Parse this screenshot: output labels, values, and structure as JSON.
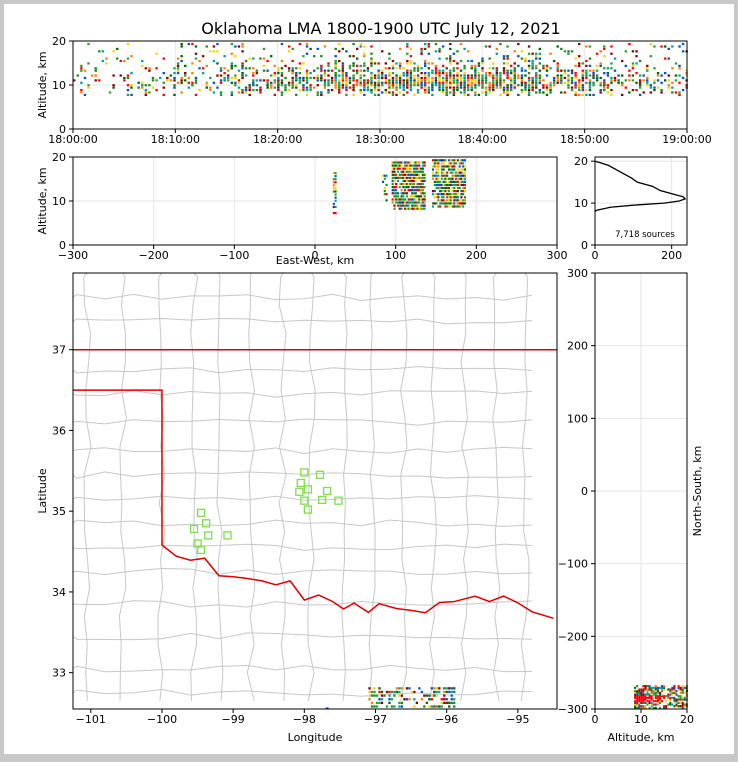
{
  "title": "Oklahoma LMA 1800-1900 UTC July 12, 2021",
  "palette": [
    "#006400",
    "#1a8a1a",
    "#2ca02c",
    "#00a0a0",
    "#0050d0",
    "#ff8000",
    "#ff0000",
    "#8b0000",
    "#ffd000"
  ],
  "colors": {
    "border": "#e00000",
    "station": "#7de04a",
    "county": "#c8c8c8",
    "histogram": "#000000"
  },
  "chart_data": [
    {
      "type": "heatmap",
      "name": "time-altitude",
      "xlabel": "",
      "ylabel": "Altitude, km",
      "x_ticks": [
        "18:00:00",
        "18:10:00",
        "18:20:00",
        "18:30:00",
        "18:40:00",
        "18:50:00",
        "19:00:00"
      ],
      "xlim_minutes": [
        0,
        60
      ],
      "ylim": [
        0,
        20
      ],
      "y_ticks": [
        0,
        10,
        20
      ]
    },
    {
      "type": "heatmap",
      "name": "east-west-altitude",
      "xlabel": "East-West, km",
      "ylabel": "Altitude, km",
      "xlim": [
        -300,
        300
      ],
      "x_ticks": [
        -300,
        -200,
        -100,
        0,
        100,
        200,
        300
      ],
      "ylim": [
        0,
        20
      ],
      "y_ticks": [
        0,
        10,
        20
      ]
    },
    {
      "type": "line",
      "name": "altitude-histogram",
      "xlabel": "",
      "ylabel": "",
      "xlim": [
        0,
        240
      ],
      "x_ticks": [
        0,
        200
      ],
      "ylim": [
        0,
        21
      ],
      "y_ticks": [
        0,
        10,
        20
      ],
      "annotation": "7,718 sources",
      "x": [
        0,
        15,
        35,
        55,
        75,
        95,
        110,
        130,
        150,
        170,
        190,
        210,
        230,
        235,
        220,
        180,
        100,
        40,
        5,
        0
      ],
      "y": [
        20,
        19.6,
        19,
        18,
        17,
        16,
        15,
        14.5,
        14,
        13,
        12.5,
        12,
        11.5,
        11,
        10.5,
        10,
        9.5,
        9,
        8.3,
        8
      ]
    },
    {
      "type": "scatter",
      "name": "plan-view-map",
      "xlabel": "Longitude",
      "ylabel": "Latitude",
      "xlim": [
        -101.25,
        -94.45
      ],
      "x_ticks": [
        -101,
        -100,
        -99,
        -98,
        -97,
        -96,
        -95
      ],
      "ylim": [
        32.55,
        37.95
      ],
      "y_ticks": [
        33,
        34,
        35,
        36,
        37
      ],
      "stations": [
        [
          -99.45,
          34.98
        ],
        [
          -99.38,
          34.85
        ],
        [
          -99.55,
          34.78
        ],
        [
          -99.35,
          34.7
        ],
        [
          -99.5,
          34.6
        ],
        [
          -99.45,
          34.52
        ],
        [
          -99.08,
          34.7
        ],
        [
          -98.0,
          35.48
        ],
        [
          -98.05,
          35.35
        ],
        [
          -97.95,
          35.27
        ],
        [
          -97.78,
          35.45
        ],
        [
          -98.07,
          35.24
        ],
        [
          -98.0,
          35.13
        ],
        [
          -97.95,
          35.02
        ],
        [
          -97.75,
          35.14
        ],
        [
          -97.68,
          35.25
        ],
        [
          -97.52,
          35.13
        ]
      ]
    },
    {
      "type": "heatmap",
      "name": "altitude-north-south",
      "xlabel": "Altitude, km",
      "ylabel": "North-South, km",
      "xlim": [
        0,
        20
      ],
      "x_ticks": [
        0,
        10,
        20
      ],
      "ylim": [
        -300,
        300
      ],
      "y_ticks": [
        -300,
        -200,
        -100,
        0,
        100,
        200,
        300
      ]
    }
  ]
}
